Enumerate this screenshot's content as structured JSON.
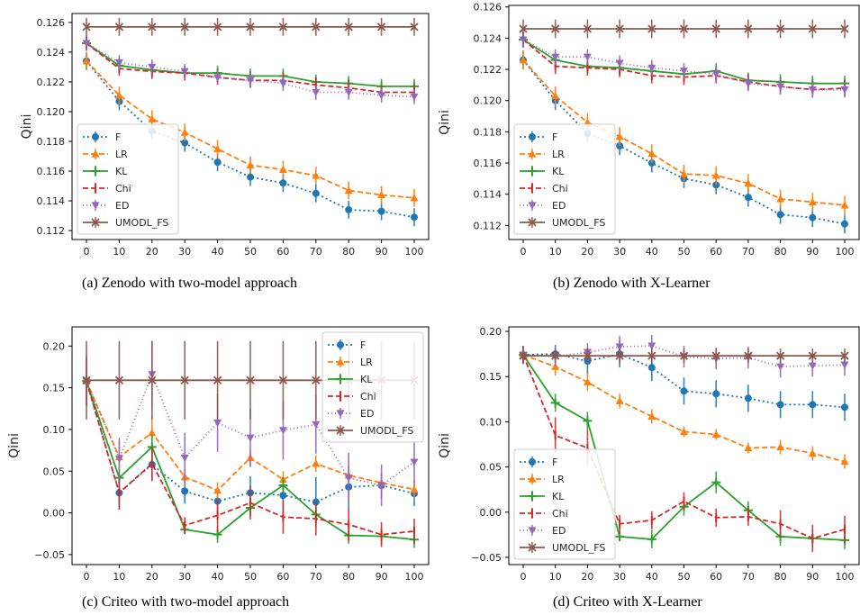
{
  "colors": {
    "F": "#1f77b4",
    "LR": "#ff7f0e",
    "KL": "#2ca02c",
    "Chi": "#d62728",
    "ED": "#9467bd",
    "UMODL_FS": "#8c564b"
  },
  "chart_data": [
    {
      "type": "line",
      "caption": "(a) Zenodo with two-model approach",
      "ylabel": "Qini",
      "x": [
        0,
        10,
        20,
        30,
        40,
        50,
        60,
        70,
        80,
        90,
        100
      ],
      "ylim": [
        0.1114,
        0.1266
      ],
      "yticks": [
        0.112,
        0.114,
        0.116,
        0.118,
        0.12,
        0.122,
        0.124,
        0.126
      ],
      "ytick_labels": [
        "0.112",
        "0.114",
        "0.116",
        "0.118",
        "0.120",
        "0.122",
        "0.124",
        "0.126"
      ],
      "legend_position": "lower-left",
      "series": [
        {
          "name": "F",
          "marker": "circle",
          "dash": "2,3",
          "values": [
            0.1234,
            0.1207,
            0.1187,
            0.1179,
            0.1166,
            0.1156,
            0.1152,
            0.1145,
            0.1134,
            0.1133,
            0.1129
          ],
          "err": [
            0.0006,
            0.0006,
            0.0006,
            0.0006,
            0.0006,
            0.0006,
            0.0006,
            0.0006,
            0.0006,
            0.0006,
            0.0006
          ]
        },
        {
          "name": "LR",
          "marker": "triangle",
          "dash": "6,3",
          "values": [
            0.1234,
            0.1211,
            0.1195,
            0.1186,
            0.1175,
            0.1164,
            0.1161,
            0.1157,
            0.1147,
            0.1144,
            0.1142
          ],
          "err": [
            0.0006,
            0.0006,
            0.0006,
            0.0006,
            0.0006,
            0.0006,
            0.0006,
            0.0006,
            0.0006,
            0.0006,
            0.0006
          ]
        },
        {
          "name": "KL",
          "marker": "plus",
          "dash": "",
          "values": [
            0.1246,
            0.1231,
            0.1228,
            0.1226,
            0.1226,
            0.1224,
            0.1224,
            0.122,
            0.1219,
            0.1217,
            0.1217
          ],
          "err": [
            0.0005,
            0.0005,
            0.0005,
            0.0005,
            0.0005,
            0.0005,
            0.0005,
            0.0005,
            0.0005,
            0.0005,
            0.0005
          ]
        },
        {
          "name": "Chi",
          "marker": "vline",
          "dash": "6,3",
          "values": [
            0.1246,
            0.1229,
            0.1227,
            0.1226,
            0.1223,
            0.1221,
            0.1221,
            0.1218,
            0.1216,
            0.1213,
            0.1213
          ],
          "err": [
            0.0005,
            0.0005,
            0.0005,
            0.0005,
            0.0005,
            0.0005,
            0.0005,
            0.0005,
            0.0005,
            0.0005,
            0.0005
          ]
        },
        {
          "name": "ED",
          "marker": "down-triangle",
          "dash": "1,3",
          "values": [
            0.1246,
            0.1233,
            0.123,
            0.1227,
            0.1223,
            0.1221,
            0.1219,
            0.1213,
            0.1213,
            0.1211,
            0.121
          ],
          "err": [
            0.0005,
            0.0005,
            0.0005,
            0.0005,
            0.0005,
            0.0005,
            0.0005,
            0.0005,
            0.0005,
            0.0005,
            0.0005
          ]
        },
        {
          "name": "UMODL_FS",
          "marker": "x",
          "dash": "",
          "values": [
            0.1257,
            0.1257,
            0.1257,
            0.1257,
            0.1257,
            0.1257,
            0.1257,
            0.1257,
            0.1257,
            0.1257,
            0.1257
          ],
          "err": [
            0.0006,
            0.0006,
            0.0006,
            0.0006,
            0.0006,
            0.0006,
            0.0006,
            0.0006,
            0.0006,
            0.0006,
            0.0006
          ]
        }
      ]
    },
    {
      "type": "line",
      "caption": "(b) Zenodo with X-Learner",
      "ylabel": "Qini",
      "x": [
        0,
        10,
        20,
        30,
        40,
        50,
        60,
        70,
        80,
        90,
        100
      ],
      "ylim": [
        0.1111,
        0.1261
      ],
      "yticks": [
        0.112,
        0.114,
        0.116,
        0.118,
        0.12,
        0.122,
        0.124,
        0.126
      ],
      "ytick_labels": [
        "0.112",
        "0.114",
        "0.116",
        "0.118",
        "0.120",
        "0.122",
        "0.124",
        "0.126"
      ],
      "legend_position": "lower-left",
      "series": [
        {
          "name": "F",
          "marker": "circle",
          "dash": "2,3",
          "values": [
            0.1226,
            0.12,
            0.1179,
            0.1171,
            0.116,
            0.115,
            0.1146,
            0.1138,
            0.1127,
            0.1125,
            0.1121
          ],
          "err": [
            0.0006,
            0.0006,
            0.0006,
            0.0006,
            0.0006,
            0.0006,
            0.0006,
            0.0006,
            0.0006,
            0.0006,
            0.0006
          ]
        },
        {
          "name": "LR",
          "marker": "triangle",
          "dash": "6,3",
          "values": [
            0.1226,
            0.1203,
            0.1186,
            0.1177,
            0.1166,
            0.1153,
            0.1152,
            0.1147,
            0.1137,
            0.1135,
            0.1133
          ],
          "err": [
            0.0006,
            0.0006,
            0.0006,
            0.0006,
            0.0006,
            0.0006,
            0.0006,
            0.0006,
            0.0006,
            0.0006,
            0.0006
          ]
        },
        {
          "name": "KL",
          "marker": "plus",
          "dash": "",
          "values": [
            0.1239,
            0.1226,
            0.1222,
            0.1221,
            0.1219,
            0.1217,
            0.1219,
            0.1213,
            0.1212,
            0.1211,
            0.1211
          ],
          "err": [
            0.0005,
            0.0005,
            0.0005,
            0.0005,
            0.0005,
            0.0005,
            0.0005,
            0.0005,
            0.0005,
            0.0005,
            0.0005
          ]
        },
        {
          "name": "Chi",
          "marker": "vline",
          "dash": "6,3",
          "values": [
            0.1239,
            0.1222,
            0.1221,
            0.122,
            0.1216,
            0.1215,
            0.1216,
            0.1212,
            0.1209,
            0.1207,
            0.1208
          ],
          "err": [
            0.0005,
            0.0005,
            0.0005,
            0.0005,
            0.0005,
            0.0005,
            0.0005,
            0.0005,
            0.0005,
            0.0005,
            0.0005
          ]
        },
        {
          "name": "ED",
          "marker": "down-triangle",
          "dash": "1,3",
          "values": [
            0.1239,
            0.1228,
            0.1228,
            0.1224,
            0.1221,
            0.1219,
            0.1217,
            0.1211,
            0.1209,
            0.1207,
            0.1207
          ],
          "err": [
            0.0005,
            0.0005,
            0.0005,
            0.0005,
            0.0005,
            0.0005,
            0.0005,
            0.0005,
            0.0005,
            0.0005,
            0.0005
          ]
        },
        {
          "name": "UMODL_FS",
          "marker": "x",
          "dash": "",
          "values": [
            0.1246,
            0.1246,
            0.1246,
            0.1246,
            0.1246,
            0.1246,
            0.1246,
            0.1246,
            0.1246,
            0.1246,
            0.1246
          ],
          "err": [
            0.0006,
            0.0006,
            0.0006,
            0.0006,
            0.0006,
            0.0006,
            0.0006,
            0.0006,
            0.0006,
            0.0006,
            0.0006
          ]
        }
      ]
    },
    {
      "type": "line",
      "caption": "(c) Criteo with two-model approach",
      "ylabel": "Qini",
      "x": [
        0,
        10,
        20,
        30,
        40,
        50,
        60,
        70,
        80,
        90,
        100
      ],
      "ylim": [
        -0.062,
        0.223
      ],
      "yticks": [
        -0.05,
        0.0,
        0.05,
        0.1,
        0.15,
        0.2
      ],
      "ytick_labels": [
        "−0.05",
        "0.00",
        "0.05",
        "0.10",
        "0.15",
        "0.20"
      ],
      "legend_position": "top-right",
      "series": [
        {
          "name": "F",
          "marker": "circle",
          "dash": "2,3",
          "values": [
            0.158,
            0.024,
            0.058,
            0.026,
            0.014,
            0.024,
            0.021,
            0.013,
            0.031,
            0.033,
            0.023
          ],
          "err": [
            0.03,
            0.02,
            0.02,
            0.015,
            0.015,
            0.02,
            0.02,
            0.03,
            0.025,
            0.015,
            0.015
          ]
        },
        {
          "name": "LR",
          "marker": "triangle",
          "dash": "6,3",
          "values": [
            0.158,
            0.067,
            0.096,
            0.043,
            0.027,
            0.066,
            0.04,
            0.059,
            0.045,
            0.036,
            0.028
          ],
          "err": [
            0.03,
            0.02,
            0.02,
            0.01,
            0.01,
            0.01,
            0.01,
            0.01,
            0.01,
            0.01,
            0.01
          ]
        },
        {
          "name": "KL",
          "marker": "plus",
          "dash": "",
          "values": [
            0.158,
            0.042,
            0.079,
            -0.02,
            -0.026,
            0.006,
            0.033,
            -0.002,
            -0.027,
            -0.028,
            -0.032
          ],
          "err": [
            0.01,
            0.01,
            0.015,
            0.005,
            0.01,
            0.01,
            0.01,
            0.01,
            0.01,
            0.01,
            0.01
          ]
        },
        {
          "name": "Chi",
          "marker": "vline",
          "dash": "6,3",
          "values": [
            0.158,
            0.024,
            0.059,
            -0.015,
            -0.003,
            0.012,
            -0.005,
            -0.007,
            -0.014,
            -0.026,
            -0.022
          ],
          "err": [
            0.02,
            0.02,
            0.02,
            0.01,
            0.02,
            0.02,
            0.02,
            0.02,
            0.02,
            0.015,
            0.015
          ]
        },
        {
          "name": "ED",
          "marker": "down-triangle",
          "dash": "1,3",
          "values": [
            0.158,
            0.065,
            0.166,
            0.066,
            0.108,
            0.09,
            0.099,
            0.106,
            0.042,
            0.033,
            0.061
          ],
          "err": [
            0.03,
            0.025,
            0.04,
            0.03,
            0.035,
            0.035,
            0.035,
            0.035,
            0.03,
            0.025,
            0.025
          ]
        },
        {
          "name": "UMODL_FS",
          "marker": "x",
          "dash": "",
          "values": [
            0.159,
            0.159,
            0.159,
            0.159,
            0.159,
            0.159,
            0.159,
            0.159,
            0.159,
            0.159,
            0.159
          ],
          "err": [
            0.047,
            0.047,
            0.047,
            0.047,
            0.047,
            0.047,
            0.047,
            0.047,
            0.047,
            0.047,
            0.047
          ]
        }
      ]
    },
    {
      "type": "line",
      "caption": "(d) Criteo with X-Learner",
      "ylabel": "Qini",
      "x": [
        0,
        10,
        20,
        30,
        40,
        50,
        60,
        70,
        80,
        90,
        100
      ],
      "ylim": [
        -0.058,
        0.205
      ],
      "yticks": [
        -0.05,
        0.0,
        0.05,
        0.1,
        0.15,
        0.2
      ],
      "ytick_labels": [
        "−0.05",
        "0.00",
        "0.05",
        "0.10",
        "0.15",
        "0.20"
      ],
      "legend_position": "lower-left",
      "series": [
        {
          "name": "F",
          "marker": "circle",
          "dash": "2,3",
          "values": [
            0.174,
            0.175,
            0.167,
            0.175,
            0.16,
            0.134,
            0.131,
            0.126,
            0.119,
            0.119,
            0.116
          ],
          "err": [
            0.01,
            0.01,
            0.015,
            0.015,
            0.015,
            0.015,
            0.015,
            0.015,
            0.015,
            0.015,
            0.015
          ]
        },
        {
          "name": "LR",
          "marker": "triangle",
          "dash": "6,3",
          "values": [
            0.174,
            0.161,
            0.144,
            0.123,
            0.106,
            0.089,
            0.086,
            0.071,
            0.072,
            0.065,
            0.056
          ],
          "err": [
            0.01,
            0.01,
            0.01,
            0.008,
            0.008,
            0.006,
            0.006,
            0.006,
            0.008,
            0.008,
            0.008
          ]
        },
        {
          "name": "KL",
          "marker": "plus",
          "dash": "",
          "values": [
            0.174,
            0.121,
            0.101,
            -0.027,
            -0.03,
            0.006,
            0.033,
            0.002,
            -0.027,
            -0.029,
            -0.031
          ],
          "err": [
            0.01,
            0.01,
            0.01,
            0.005,
            0.01,
            0.01,
            0.012,
            0.01,
            0.01,
            0.01,
            0.01
          ]
        },
        {
          "name": "Chi",
          "marker": "vline",
          "dash": "6,3",
          "values": [
            0.174,
            0.085,
            0.071,
            -0.013,
            -0.009,
            0.012,
            -0.006,
            -0.005,
            -0.013,
            -0.029,
            -0.019
          ],
          "err": [
            0.01,
            0.02,
            0.02,
            0.01,
            0.01,
            0.01,
            0.01,
            0.01,
            0.015,
            0.015,
            0.015
          ]
        },
        {
          "name": "ED",
          "marker": "down-triangle",
          "dash": "1,3",
          "values": [
            0.174,
            0.172,
            0.177,
            0.183,
            0.184,
            0.172,
            0.17,
            0.171,
            0.161,
            0.162,
            0.163
          ],
          "err": [
            0.01,
            0.01,
            0.01,
            0.012,
            0.012,
            0.012,
            0.012,
            0.012,
            0.012,
            0.012,
            0.012
          ]
        },
        {
          "name": "UMODL_FS",
          "marker": "x",
          "dash": "",
          "values": [
            0.173,
            0.173,
            0.173,
            0.173,
            0.173,
            0.173,
            0.173,
            0.173,
            0.173,
            0.173,
            0.173
          ],
          "err": [
            0.008,
            0.008,
            0.008,
            0.008,
            0.008,
            0.008,
            0.008,
            0.008,
            0.008,
            0.008,
            0.008
          ]
        }
      ]
    }
  ]
}
